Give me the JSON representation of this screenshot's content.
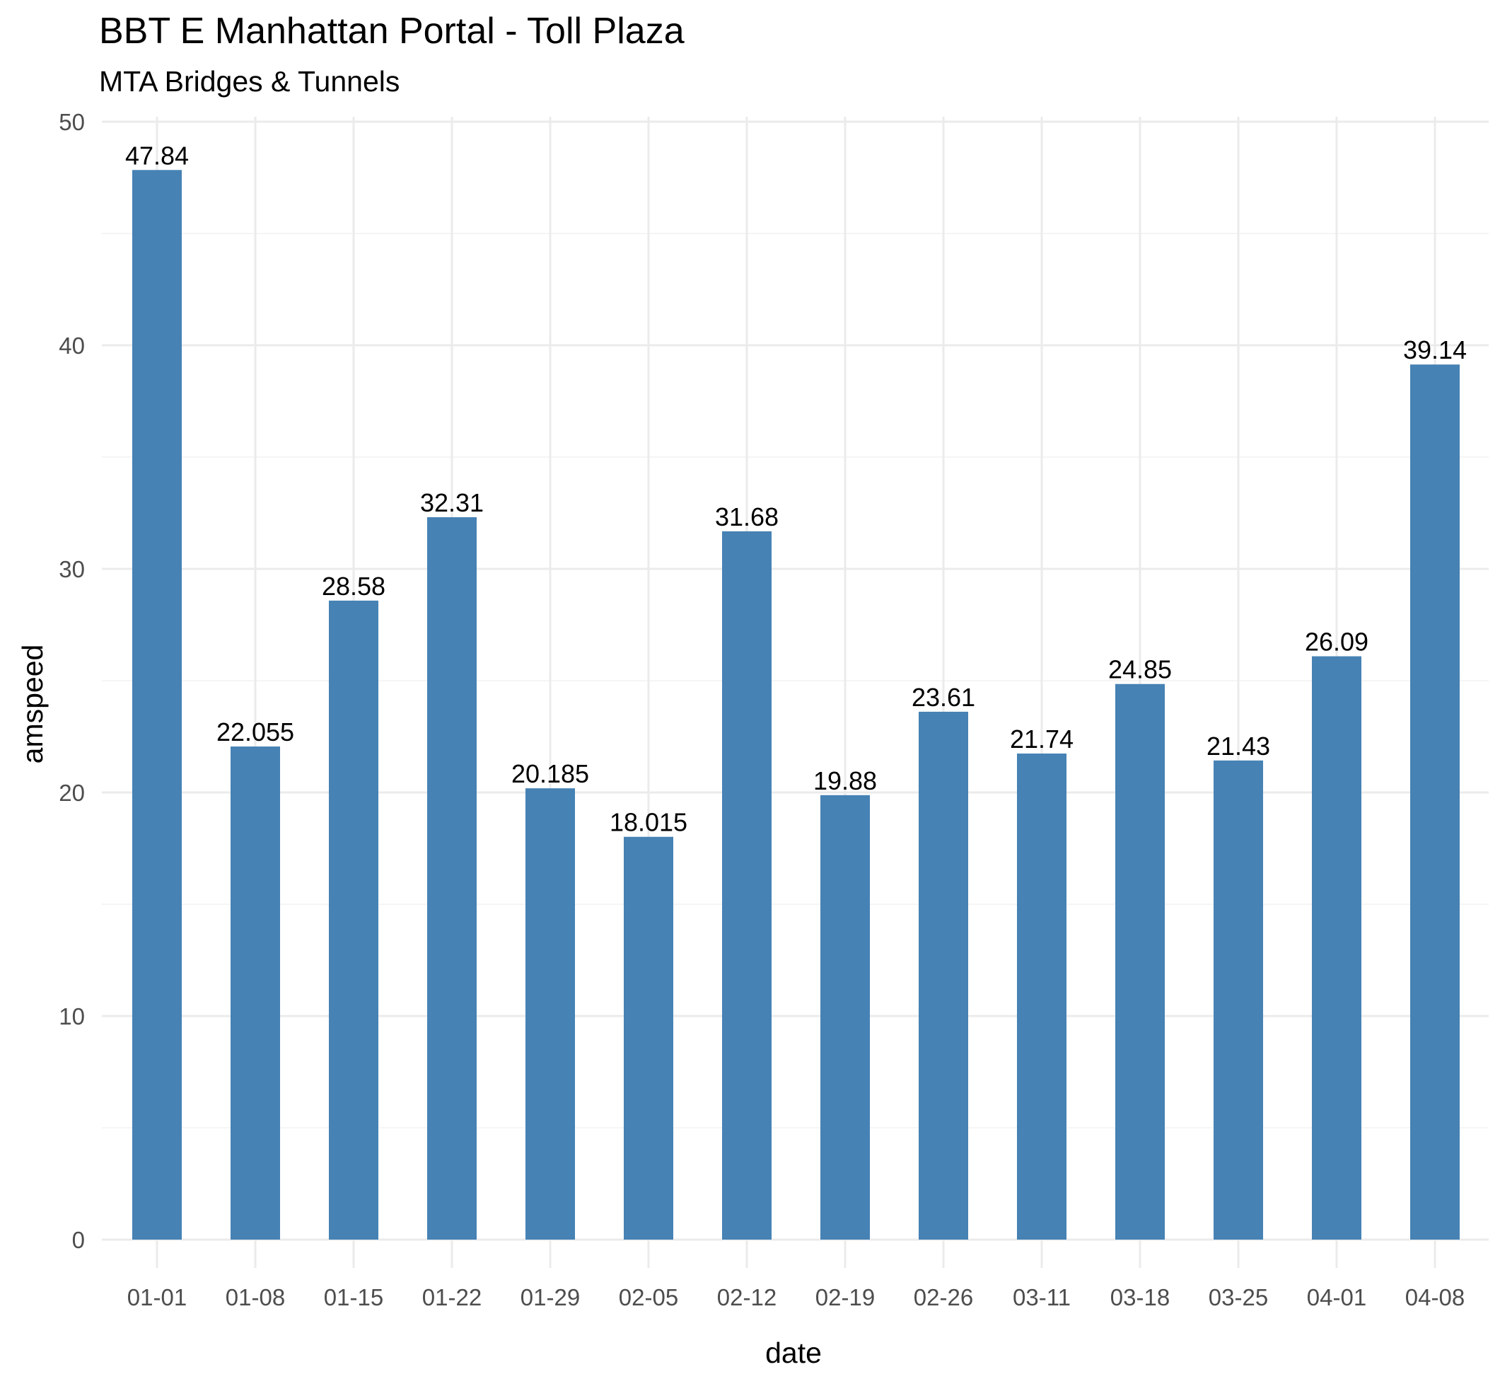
{
  "chart_data": {
    "type": "bar",
    "title": "BBT E Manhattan Portal - Toll Plaza",
    "subtitle": "MTA Bridges & Tunnels",
    "xlabel": "date",
    "ylabel": "amspeed",
    "categories": [
      "01-01",
      "01-08",
      "01-15",
      "01-22",
      "01-29",
      "02-05",
      "02-12",
      "02-19",
      "02-26",
      "03-11",
      "03-18",
      "03-25",
      "04-01",
      "04-08"
    ],
    "values": [
      47.84,
      22.055,
      28.58,
      32.31,
      20.185,
      18.015,
      31.68,
      19.88,
      23.61,
      21.74,
      24.85,
      21.43,
      26.09,
      39.14
    ],
    "value_labels": [
      "47.84",
      "22.055",
      "28.58",
      "32.31",
      "20.185",
      "18.015",
      "31.68",
      "19.88",
      "23.61",
      "21.74",
      "24.85",
      "21.43",
      "26.09",
      "39.14"
    ],
    "ylim": [
      0,
      50
    ],
    "yticks": [
      0,
      10,
      20,
      30,
      40,
      50
    ],
    "ytick_labels": [
      "0",
      "10",
      "20",
      "30",
      "40",
      "50"
    ],
    "bar_color": "#4682b4",
    "grid": true,
    "legend": "none"
  }
}
